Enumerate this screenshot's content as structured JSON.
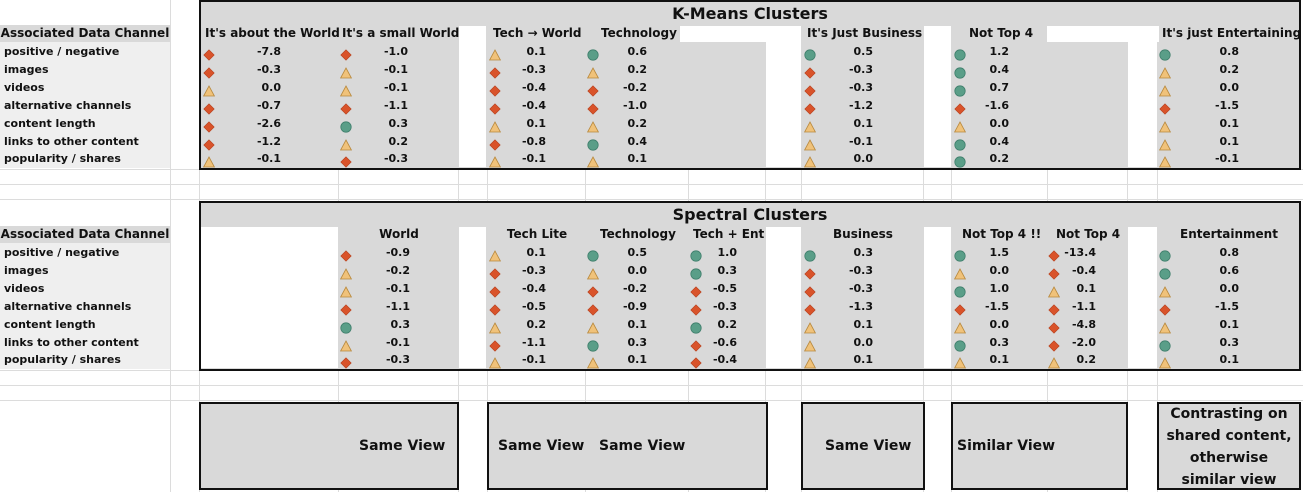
{
  "row_labels": [
    "positive / negative",
    "images",
    "videos",
    "alternative channels",
    "content length",
    "links to other content",
    "popularity / shares"
  ],
  "assoc_header": "Associated Data Channel",
  "kmeans": {
    "title": "K-Means Clusters",
    "columns": [
      {
        "label": "It's about the World",
        "icons": [
          "diamond",
          "diamond",
          "triangle",
          "diamond",
          "diamond",
          "diamond",
          "triangle"
        ],
        "values": [
          "-7.8",
          "-0.3",
          "0.0",
          "-0.7",
          "-2.6",
          "-1.2",
          "-0.1"
        ]
      },
      {
        "label": "It's a small World",
        "icons": [
          "diamond",
          "triangle",
          "triangle",
          "diamond",
          "circle",
          "triangle",
          "diamond"
        ],
        "values": [
          "-1.0",
          "-0.1",
          "-0.1",
          "-1.1",
          "0.3",
          "0.2",
          "-0.3"
        ]
      },
      {
        "label": "Tech → World",
        "icons": [
          "triangle",
          "diamond",
          "diamond",
          "diamond",
          "triangle",
          "diamond",
          "triangle"
        ],
        "values": [
          "0.1",
          "-0.3",
          "-0.4",
          "-0.4",
          "0.1",
          "-0.8",
          "-0.1"
        ]
      },
      {
        "label": "Technology",
        "icons": [
          "circle",
          "triangle",
          "diamond",
          "diamond",
          "triangle",
          "circle",
          "triangle"
        ],
        "values": [
          "0.6",
          "0.2",
          "-0.2",
          "-1.0",
          "0.2",
          "0.4",
          "0.1"
        ]
      },
      {
        "label": "It's Just Business",
        "icons": [
          "circle",
          "diamond",
          "diamond",
          "diamond",
          "triangle",
          "triangle",
          "triangle"
        ],
        "values": [
          "0.5",
          "-0.3",
          "-0.3",
          "-1.2",
          "0.1",
          "-0.1",
          "0.0"
        ]
      },
      {
        "label": "Not Top 4",
        "icons": [
          "circle",
          "circle",
          "circle",
          "diamond",
          "triangle",
          "circle",
          "circle"
        ],
        "values": [
          "1.2",
          "0.4",
          "0.7",
          "-1.6",
          "0.0",
          "0.4",
          "0.2"
        ]
      },
      {
        "label": "It's just Entertaining",
        "icons": [
          "circle",
          "triangle",
          "triangle",
          "diamond",
          "triangle",
          "triangle",
          "triangle"
        ],
        "values": [
          "0.8",
          "0.2",
          "0.0",
          "-1.5",
          "0.1",
          "0.1",
          "-0.1"
        ]
      }
    ]
  },
  "spectral": {
    "title": "Spectral Clusters",
    "columns": [
      {
        "label": "World",
        "icons": [
          "diamond",
          "triangle",
          "triangle",
          "diamond",
          "circle",
          "triangle",
          "diamond"
        ],
        "values": [
          "-0.9",
          "-0.2",
          "-0.1",
          "-1.1",
          "0.3",
          "-0.1",
          "-0.3"
        ]
      },
      {
        "label": "Tech Lite",
        "icons": [
          "triangle",
          "diamond",
          "diamond",
          "diamond",
          "triangle",
          "diamond",
          "triangle"
        ],
        "values": [
          "0.1",
          "-0.3",
          "-0.4",
          "-0.5",
          "0.2",
          "-1.1",
          "-0.1"
        ]
      },
      {
        "label": "Technology",
        "icons": [
          "circle",
          "triangle",
          "diamond",
          "diamond",
          "triangle",
          "circle",
          "triangle"
        ],
        "values": [
          "0.5",
          "0.0",
          "-0.2",
          "-0.9",
          "0.1",
          "0.3",
          "0.1"
        ]
      },
      {
        "label": "Tech + Ent",
        "icons": [
          "circle",
          "circle",
          "diamond",
          "diamond",
          "circle",
          "diamond",
          "diamond"
        ],
        "values": [
          "1.0",
          "0.3",
          "-0.5",
          "-0.3",
          "0.2",
          "-0.6",
          "-0.4"
        ]
      },
      {
        "label": "Business",
        "icons": [
          "circle",
          "diamond",
          "diamond",
          "diamond",
          "triangle",
          "triangle",
          "triangle"
        ],
        "values": [
          "0.3",
          "-0.3",
          "-0.3",
          "-1.3",
          "0.1",
          "0.0",
          "0.1"
        ]
      },
      {
        "label": "Not Top 4 !!",
        "icons": [
          "circle",
          "triangle",
          "circle",
          "diamond",
          "triangle",
          "circle",
          "triangle"
        ],
        "values": [
          "1.5",
          "0.0",
          "1.0",
          "-1.5",
          "0.0",
          "0.3",
          "0.1"
        ]
      },
      {
        "label": "Not Top 4",
        "icons": [
          "diamond",
          "diamond",
          "triangle",
          "diamond",
          "diamond",
          "diamond",
          "triangle"
        ],
        "values": [
          "-13.4",
          "-0.4",
          "0.1",
          "-1.1",
          "-4.8",
          "-2.0",
          "0.2"
        ]
      },
      {
        "label": "Entertainment",
        "icons": [
          "circle",
          "circle",
          "triangle",
          "diamond",
          "triangle",
          "circle",
          "triangle"
        ],
        "values": [
          "0.8",
          "0.6",
          "0.0",
          "-1.5",
          "0.1",
          "0.3",
          "0.1"
        ]
      }
    ]
  },
  "footer": {
    "same_view": "Same View",
    "similar_view": "Similar View",
    "contrast": "Contrasting on shared content, otherwise similar view"
  },
  "colors": {
    "circle": "#5a9e88",
    "diamond": "#d9532a",
    "triangle": "#f0c27a",
    "panel": "#d9d9d9"
  }
}
